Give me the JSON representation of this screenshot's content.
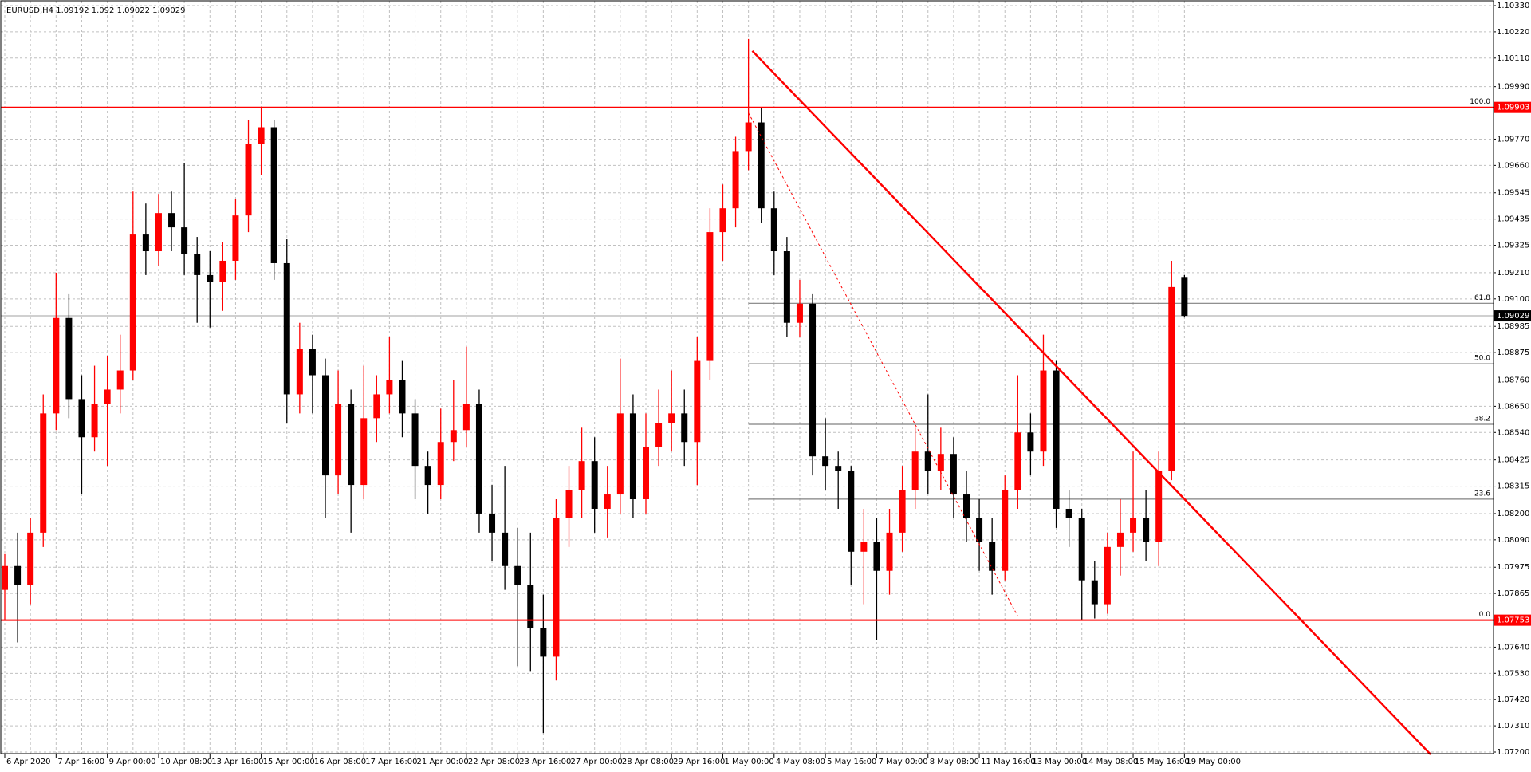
{
  "chart_data": {
    "type": "candlestick",
    "symbol": "EURUSD,H4",
    "up_color": "#ff0000",
    "down_color": "#000000",
    "grid": true,
    "ylim": [
      1.072,
      1.1033
    ],
    "yticks": [
      {
        "value": 1.1033,
        "label": "1.10330"
      },
      {
        "value": 1.1022,
        "label": "1.10220"
      },
      {
        "value": 1.1011,
        "label": "1.10110"
      },
      {
        "value": 1.0999,
        "label": "1.09990"
      },
      {
        "value": 1.0977,
        "label": "1.09770"
      },
      {
        "value": 1.0966,
        "label": "1.09660"
      },
      1.09545,
      1.09435,
      1.09325,
      {
        "value": 1.0921,
        "label": "1.09210"
      },
      {
        "value": 1.091,
        "label": "1.09100"
      },
      1.08985,
      1.08875,
      {
        "value": 1.0876,
        "label": "1.08760"
      },
      {
        "value": 1.0865,
        "label": "1.08650"
      },
      {
        "value": 1.0854,
        "label": "1.08540"
      },
      1.08425,
      1.08315,
      {
        "value": 1.082,
        "label": "1.08200"
      },
      {
        "value": 1.0809,
        "label": "1.08090"
      },
      1.07975,
      1.07865,
      {
        "value": 1.0764,
        "label": "1.07640"
      },
      {
        "value": 1.0753,
        "label": "1.07530"
      },
      {
        "value": 1.0742,
        "label": "1.07420"
      },
      {
        "value": 1.0731,
        "label": "1.07310"
      },
      {
        "value": 1.072,
        "label": "1.07200"
      }
    ],
    "categories": [
      "6 Apr 2020",
      null,
      null,
      null,
      "7 Apr 16:00",
      null,
      null,
      null,
      "9 Apr 00:00",
      null,
      null,
      null,
      "10 Apr 08:00",
      null,
      null,
      null,
      "13 Apr 16:00",
      null,
      null,
      null,
      "15 Apr 00:00",
      null,
      null,
      null,
      "16 Apr 08:00",
      null,
      null,
      null,
      "17 Apr 16:00",
      null,
      null,
      null,
      "21 Apr 00:00",
      null,
      null,
      null,
      "22 Apr 08:00",
      null,
      null,
      null,
      "23 Apr 16:00",
      null,
      null,
      null,
      "27 Apr 00:00",
      null,
      null,
      null,
      "28 Apr 08:00",
      null,
      null,
      null,
      "29 Apr 16:00",
      null,
      null,
      null,
      "1 May 00:00",
      null,
      null,
      null,
      "4 May 08:00",
      null,
      null,
      null,
      "5 May 16:00",
      null,
      null,
      null,
      "7 May 00:00",
      null,
      null,
      null,
      "8 May 08:00",
      null,
      null,
      null,
      "11 May 16:00",
      null,
      null,
      null,
      "13 May 00:00",
      null,
      null,
      null,
      "14 May 08:00",
      null,
      null,
      null,
      "15 May 16:00",
      null,
      null,
      null,
      "19 May 00:00"
    ],
    "ohlc": [
      [
        1.0788,
        1.0803,
        1.0775,
        1.0798
      ],
      [
        1.0798,
        1.0812,
        1.0766,
        1.079
      ],
      [
        1.079,
        1.0818,
        1.0782,
        1.0812
      ],
      [
        1.0812,
        1.087,
        1.0806,
        1.0862
      ],
      [
        1.0862,
        1.0921,
        1.0855,
        1.0902
      ],
      [
        1.0902,
        1.0912,
        1.086,
        1.0868
      ],
      [
        1.0868,
        1.0878,
        1.0828,
        1.0852
      ],
      [
        1.0852,
        1.0882,
        1.0846,
        1.0866
      ],
      [
        1.0866,
        1.0886,
        1.084,
        1.0872
      ],
      [
        1.0872,
        1.0895,
        1.0862,
        1.088
      ],
      [
        1.088,
        1.0955,
        1.0876,
        1.0937
      ],
      [
        1.0937,
        1.095,
        1.092,
        1.093
      ],
      [
        1.093,
        1.0954,
        1.0924,
        1.0946
      ],
      [
        1.0946,
        1.0955,
        1.093,
        1.094
      ],
      [
        1.094,
        1.0967,
        1.092,
        1.0929
      ],
      [
        1.0929,
        1.0936,
        1.09,
        1.092
      ],
      [
        1.092,
        1.093,
        1.0898,
        1.0917
      ],
      [
        1.0917,
        1.0934,
        1.0905,
        1.0926
      ],
      [
        1.0926,
        1.0952,
        1.0918,
        1.0945
      ],
      [
        1.0945,
        1.0985,
        1.0938,
        1.0975
      ],
      [
        1.0975,
        1.099,
        1.0962,
        1.0982
      ],
      [
        1.0982,
        1.0985,
        1.0918,
        1.0925
      ],
      [
        1.0925,
        1.0935,
        1.0858,
        1.087
      ],
      [
        1.087,
        1.09,
        1.0862,
        1.0889
      ],
      [
        1.0889,
        1.0895,
        1.0862,
        1.0878
      ],
      [
        1.0878,
        1.0885,
        1.0818,
        1.0836
      ],
      [
        1.0836,
        1.088,
        1.0828,
        1.0866
      ],
      [
        1.0866,
        1.0872,
        1.0812,
        1.0832
      ],
      [
        1.0832,
        1.0882,
        1.0826,
        1.086
      ],
      [
        1.086,
        1.0878,
        1.085,
        1.087
      ],
      [
        1.087,
        1.0894,
        1.0862,
        1.0876
      ],
      [
        1.0876,
        1.0884,
        1.0852,
        1.0862
      ],
      [
        1.0862,
        1.0868,
        1.0826,
        1.084
      ],
      [
        1.084,
        1.0846,
        1.082,
        1.0832
      ],
      [
        1.0832,
        1.0864,
        1.0826,
        1.085
      ],
      [
        1.085,
        1.0876,
        1.0842,
        1.0855
      ],
      [
        1.0855,
        1.089,
        1.0848,
        1.0866
      ],
      [
        1.0866,
        1.0872,
        1.0812,
        1.082
      ],
      [
        1.082,
        1.0832,
        1.08,
        1.0812
      ],
      [
        1.0812,
        1.084,
        1.0788,
        1.0798
      ],
      [
        1.0798,
        1.0814,
        1.0756,
        1.079
      ],
      [
        1.079,
        1.0812,
        1.0754,
        1.0772
      ],
      [
        1.0772,
        1.0786,
        1.0728,
        1.076
      ],
      [
        1.076,
        1.0826,
        1.075,
        1.0818
      ],
      [
        1.0818,
        1.084,
        1.0806,
        1.083
      ],
      [
        1.083,
        1.0856,
        1.0818,
        1.0842
      ],
      [
        1.0842,
        1.0852,
        1.0812,
        1.0822
      ],
      [
        1.0822,
        1.084,
        1.081,
        1.0828
      ],
      [
        1.0828,
        1.0885,
        1.082,
        1.0862
      ],
      [
        1.0862,
        1.087,
        1.0818,
        1.0826
      ],
      [
        1.0826,
        1.0862,
        1.082,
        1.0848
      ],
      [
        1.0848,
        1.0872,
        1.084,
        1.0858
      ],
      [
        1.0858,
        1.088,
        1.0846,
        1.0862
      ],
      [
        1.0862,
        1.0872,
        1.084,
        1.085
      ],
      [
        1.085,
        1.0894,
        1.0832,
        1.0884
      ],
      [
        1.0884,
        1.0948,
        1.0876,
        1.0938
      ],
      [
        1.0938,
        1.0958,
        1.0926,
        1.0948
      ],
      [
        1.0948,
        1.0978,
        1.094,
        1.0972
      ],
      [
        1.0972,
        1.1019,
        1.0964,
        1.0984
      ],
      [
        1.0984,
        1.099,
        1.0942,
        1.0948
      ],
      [
        1.0948,
        1.0955,
        1.092,
        1.093
      ],
      [
        1.093,
        1.0936,
        1.0894,
        1.09
      ],
      [
        1.09,
        1.0918,
        1.0894,
        1.0908
      ],
      [
        1.0908,
        1.0912,
        1.0836,
        1.0844
      ],
      [
        1.0844,
        1.086,
        1.083,
        1.084
      ],
      [
        1.084,
        1.0846,
        1.0822,
        1.0838
      ],
      [
        1.0838,
        1.084,
        1.079,
        1.0804
      ],
      [
        1.0804,
        1.0822,
        1.0782,
        1.0808
      ],
      [
        1.0808,
        1.0818,
        1.0767,
        1.0796
      ],
      [
        1.0796,
        1.0822,
        1.0786,
        1.0812
      ],
      [
        1.0812,
        1.084,
        1.0804,
        1.083
      ],
      [
        1.083,
        1.0856,
        1.0822,
        1.0846
      ],
      [
        1.0846,
        1.087,
        1.0828,
        1.0838
      ],
      [
        1.0838,
        1.0856,
        1.083,
        1.0845
      ],
      [
        1.0845,
        1.0852,
        1.0818,
        1.0828
      ],
      [
        1.0828,
        1.0838,
        1.0808,
        1.0818
      ],
      [
        1.0818,
        1.0826,
        1.0796,
        1.0808
      ],
      [
        1.0808,
        1.0818,
        1.0786,
        1.0796
      ],
      [
        1.0796,
        1.0836,
        1.0792,
        1.083
      ],
      [
        1.083,
        1.0878,
        1.0822,
        1.0854
      ],
      [
        1.0854,
        1.0862,
        1.0836,
        1.0846
      ],
      [
        1.0846,
        1.0895,
        1.084,
        1.088
      ],
      [
        1.088,
        1.0884,
        1.0814,
        1.0822
      ],
      [
        1.0822,
        1.083,
        1.0806,
        1.0818
      ],
      [
        1.0818,
        1.0822,
        1.0775,
        1.0792
      ],
      [
        1.0792,
        1.08,
        1.0776,
        1.0782
      ],
      [
        1.0782,
        1.0812,
        1.0778,
        1.0806
      ],
      [
        1.0806,
        1.0826,
        1.0794,
        1.0812
      ],
      [
        1.0812,
        1.0846,
        1.0804,
        1.0818
      ],
      [
        1.0818,
        1.083,
        1.08,
        1.0808
      ],
      [
        1.0808,
        1.0846,
        1.0798,
        1.0838
      ],
      [
        1.0838,
        1.0926,
        1.0834,
        1.0915
      ],
      [
        1.09192,
        1.092,
        1.09022,
        1.09029
      ]
    ],
    "hlines": [
      {
        "value": 1.09903,
        "color": "#ff0000"
      },
      {
        "value": 1.07753,
        "color": "#ff0000"
      }
    ],
    "fibonacci": {
      "high": 1.09903,
      "low": 1.07753,
      "start": 58,
      "color": "#808080",
      "levels": [
        {
          "value": 100,
          "label": "100.0"
        },
        61.8,
        {
          "value": 50,
          "label": "50.0"
        },
        38.2,
        23.6,
        {
          "value": 0,
          "label": "0.0"
        }
      ]
    },
    "trendlines": [
      {
        "points": [
          [
            58.3,
            1.1014
          ],
          [
            111.2,
            1.0719
          ]
        ],
        "color": "#ff0000",
        "style": "solid"
      },
      {
        "points": [
          [
            58,
            1.0988
          ],
          [
            79,
            1.0777
          ]
        ],
        "color": "#ff0000",
        "style": "dotted"
      }
    ]
  }
}
